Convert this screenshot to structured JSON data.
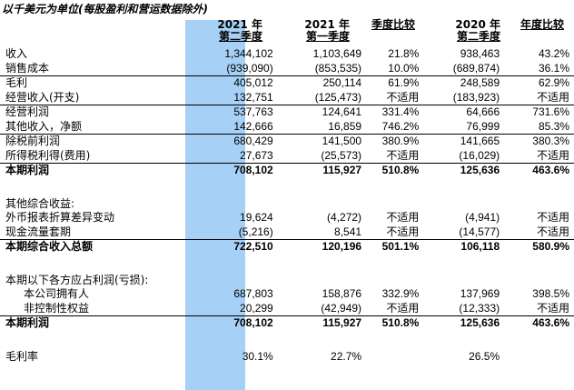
{
  "caption": "以千美元为单位(每股盈利和营运数据除外)",
  "headers": [
    {
      "line1": "2021 年",
      "line2": "第二季度"
    },
    {
      "line1": "2021 年",
      "line2": "第一季度"
    },
    {
      "line1": "季度比较",
      "line2": ""
    },
    {
      "line1": "2020 年",
      "line2": "第二季度"
    },
    {
      "line1": "年度比较",
      "line2": ""
    }
  ],
  "rows": [
    {
      "label": "收入",
      "v": [
        "1,344,102",
        "1,103,649",
        "21.8%",
        "938,463",
        "43.2%"
      ]
    },
    {
      "label": "销售成本",
      "v": [
        "(939,090)",
        "(853,535)",
        "10.0%",
        "(689,874)",
        "36.1%"
      ]
    },
    {
      "label": "毛利",
      "v": [
        "405,012",
        "250,114",
        "61.9%",
        "248,589",
        "62.9%"
      ]
    },
    {
      "label": "经营收入(开支)",
      "v": [
        "132,751",
        "(125,473)",
        "不适用",
        "(183,923)",
        "不适用"
      ]
    },
    {
      "label": "经营利润",
      "v": [
        "537,763",
        "124,641",
        "331.4%",
        "64,666",
        "731.6%"
      ]
    },
    {
      "label": "其他收入，净额",
      "v": [
        "142,666",
        "16,859",
        "746.2%",
        "76,999",
        "85.3%"
      ]
    },
    {
      "label": "除税前利润",
      "v": [
        "680,429",
        "141,500",
        "380.9%",
        "141,665",
        "380.3%"
      ]
    },
    {
      "label": "所得税利得(费用)",
      "v": [
        "27,673",
        "(25,573)",
        "不适用",
        "(16,029)",
        "不适用"
      ]
    },
    {
      "label": "本期利润",
      "v": [
        "708,102",
        "115,927",
        "510.8%",
        "125,636",
        "463.6%"
      ]
    },
    {
      "label": "其他综合收益:",
      "v": [
        "",
        "",
        "",
        "",
        ""
      ]
    },
    {
      "label": "外币报表折算差异变动",
      "v": [
        "19,624",
        "(4,272)",
        "不适用",
        "(4,941)",
        "不适用"
      ]
    },
    {
      "label": "现金流量套期",
      "v": [
        "(5,216)",
        "8,541",
        "不适用",
        "(14,577)",
        "不适用"
      ]
    },
    {
      "label": "本期综合收入总额",
      "v": [
        "722,510",
        "120,196",
        "501.1%",
        "106,118",
        "580.9%"
      ]
    },
    {
      "label": "本期以下各方应占利润(亏损):",
      "v": [
        "",
        "",
        "",
        "",
        ""
      ]
    },
    {
      "label": "本公司拥有人",
      "v": [
        "687,803",
        "158,876",
        "332.9%",
        "137,969",
        "398.5%"
      ]
    },
    {
      "label": "非控制性权益",
      "v": [
        "20,299",
        "(42,949)",
        "不适用",
        "(12,333)",
        "不适用"
      ]
    },
    {
      "label": "本期利润",
      "v": [
        "708,102",
        "115,927",
        "510.8%",
        "125,636",
        "463.6%"
      ]
    },
    {
      "label": "毛利率",
      "v": [
        "30.1%",
        "22.7%",
        "",
        "26.5%",
        ""
      ]
    }
  ]
}
